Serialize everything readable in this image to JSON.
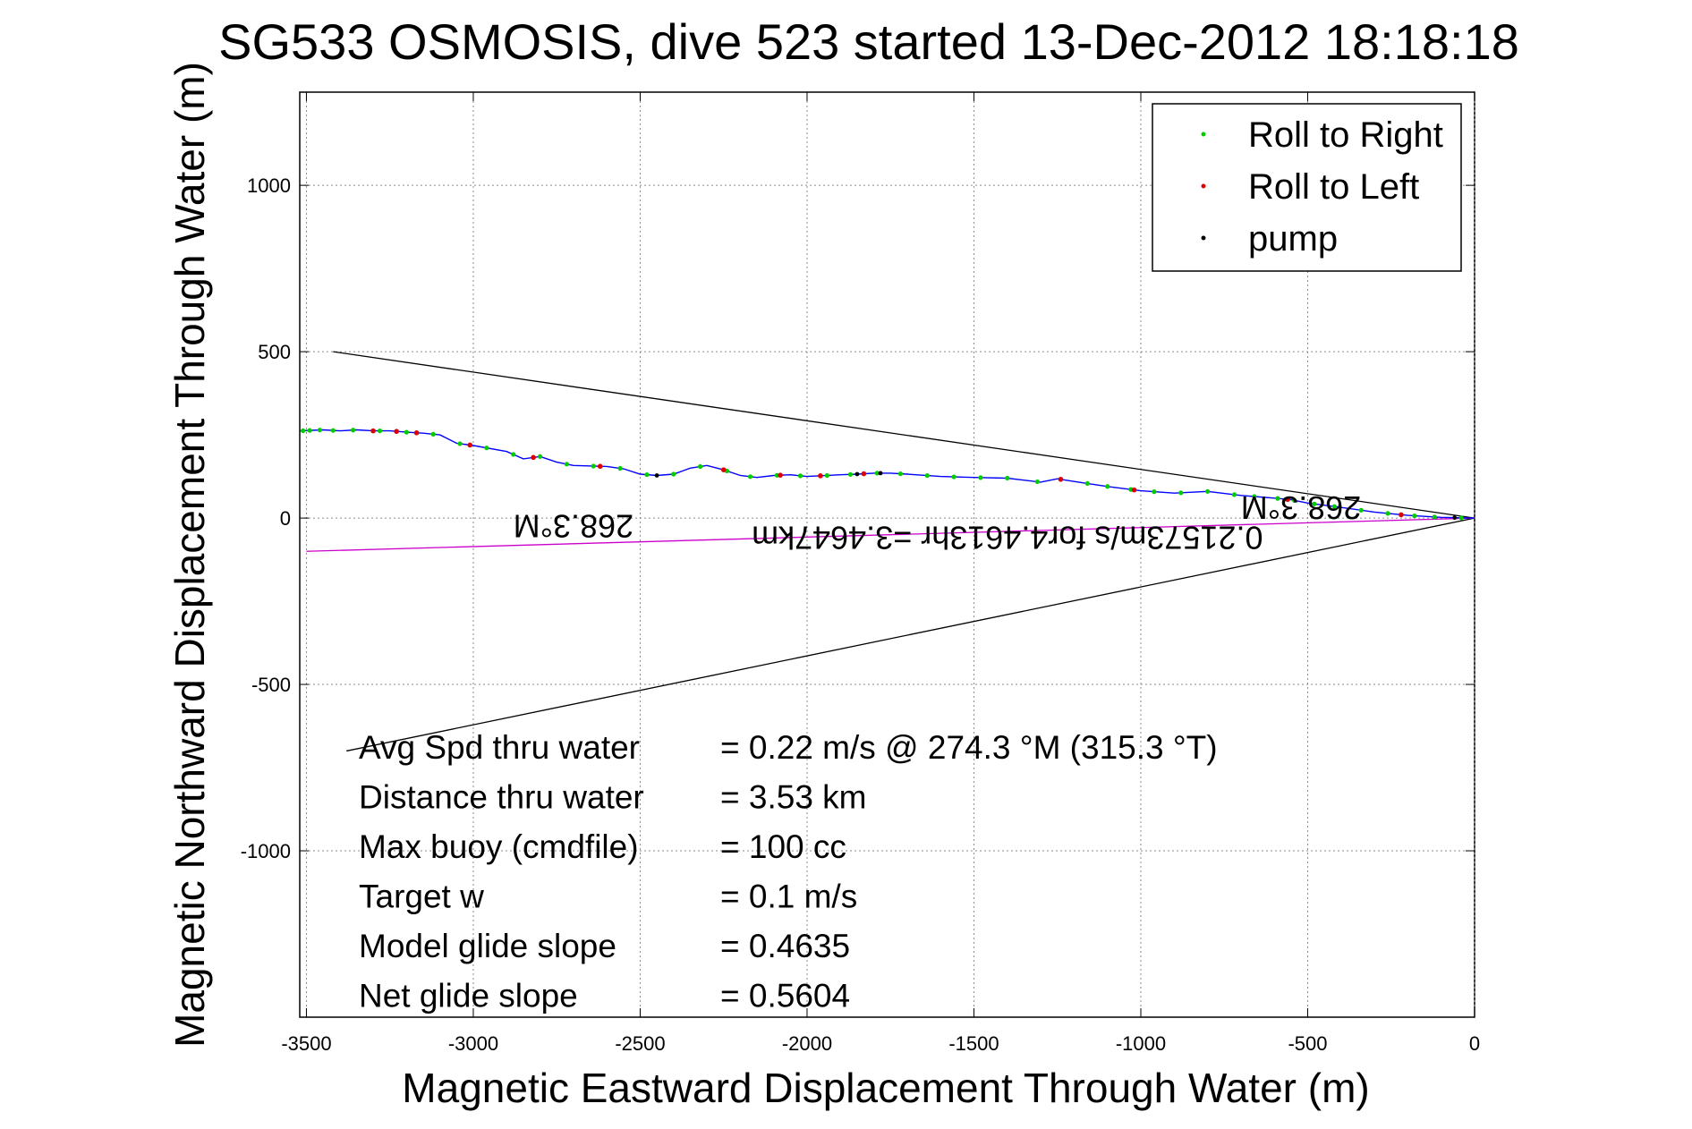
{
  "title": "SG533 OSMOSIS, dive 523 started 13-Dec-2012 18:18:18",
  "chart_data": {
    "type": "line",
    "title": "SG533 OSMOSIS, dive 523 started 13-Dec-2012 18:18:18",
    "xlabel": "Magnetic Eastward Displacement Through Water (m)",
    "ylabel": "Magnetic Northward Displacement Through Water (m)",
    "xlim": [
      -3520,
      0
    ],
    "ylim": [
      -1500,
      1280
    ],
    "xticks": [
      -3500,
      -3000,
      -2500,
      -2000,
      -1500,
      -1000,
      -500,
      0
    ],
    "yticks": [
      -1000,
      -500,
      0,
      500,
      1000
    ],
    "xtick_labels": [
      "-3500",
      "-3000",
      "-2500",
      "-2000",
      "-1500",
      "-1000",
      "-500",
      "0"
    ],
    "ytick_labels": [
      "-1000",
      "-500",
      "0",
      "500",
      "1000"
    ],
    "grid": true,
    "legend_position": "top-right",
    "legend": [
      {
        "label": "Roll to Right",
        "color": "#00cc00"
      },
      {
        "label": "Roll to Left",
        "color": "#dd0000"
      },
      {
        "label": "pump",
        "color": "#000000"
      }
    ],
    "track": {
      "name": "track",
      "color": "#0000ff",
      "x": [
        0,
        -100,
        -200,
        -300,
        -400,
        -500,
        -550,
        -600,
        -700,
        -800,
        -900,
        -1000,
        -1100,
        -1200,
        -1250,
        -1300,
        -1400,
        -1500,
        -1600,
        -1700,
        -1750,
        -1800,
        -1850,
        -1900,
        -2000,
        -2050,
        -2100,
        -2150,
        -2200,
        -2250,
        -2300,
        -2350,
        -2400,
        -2450,
        -2500,
        -2550,
        -2600,
        -2700,
        -2750,
        -2800,
        -2850,
        -2900,
        -3000,
        -3050,
        -3100,
        -3150,
        -3200,
        -3250,
        -3300,
        -3350,
        -3400,
        -3450,
        -3520
      ],
      "y": [
        0,
        2,
        8,
        18,
        32,
        45,
        55,
        60,
        68,
        80,
        75,
        82,
        95,
        110,
        118,
        108,
        120,
        122,
        125,
        132,
        135,
        135,
        132,
        130,
        125,
        130,
        128,
        122,
        128,
        145,
        158,
        150,
        132,
        128,
        132,
        148,
        155,
        158,
        168,
        185,
        178,
        200,
        218,
        225,
        250,
        255,
        258,
        262,
        262,
        265,
        262,
        265,
        262
      ]
    },
    "roll_right_x": [
      -40,
      -120,
      -180,
      -260,
      -340,
      -420,
      -480,
      -540,
      -590,
      -660,
      -720,
      -800,
      -880,
      -960,
      -1030,
      -1100,
      -1160,
      -1240,
      -1310,
      -1400,
      -1480,
      -1560,
      -1640,
      -1720,
      -1790,
      -1870,
      -1940,
      -2020,
      -2090,
      -2170,
      -2240,
      -2320,
      -2400,
      -2480,
      -2560,
      -2640,
      -2720,
      -2800,
      -2880,
      -2960,
      -3040,
      -3120,
      -3200,
      -3280,
      -3360,
      -3420,
      -3460,
      -3490,
      -3510
    ],
    "roll_left_x": [
      -220,
      -560,
      -1020,
      -1240,
      -1830,
      -1960,
      -2080,
      -2250,
      -2620,
      -2820,
      -3010,
      -3170,
      -3230,
      -3300
    ],
    "pump_x": [
      -60,
      -1780,
      -1850,
      -2450
    ],
    "lines": [
      {
        "name": "upper bound",
        "color": "#000000",
        "x": [
          0,
          -3420
        ],
        "y": [
          0,
          500
        ]
      },
      {
        "name": "lower bound",
        "color": "#000000",
        "x": [
          0,
          -3380
        ],
        "y": [
          0,
          -700
        ]
      },
      {
        "name": "depth-average current",
        "color": "#cc00cc",
        "x": [
          0,
          -3500
        ],
        "y": [
          0,
          -100
        ]
      }
    ],
    "annotations": [
      {
        "text": "268.3°M",
        "x": -2700,
        "y": 10,
        "rotation": 180
      },
      {
        "text": "268.3°M",
        "x": -520,
        "y": 65,
        "rotation": 180
      },
      {
        "text": "0.21573m/s for4.4613hr =3.4647km",
        "x": -1400,
        "y": -25,
        "rotation": 180
      }
    ],
    "stats": [
      {
        "label": "Avg Spd thru water",
        "value": "=  0.22 m/s @ 274.3 °M (315.3 °T)"
      },
      {
        "label": "Distance thru water",
        "value": "=  3.53 km"
      },
      {
        "label": "Max buoy (cmdfile)",
        "value": "= 100 cc"
      },
      {
        "label": "Target w",
        "value": "= 0.1 m/s"
      },
      {
        "label": "Model glide slope",
        "value": "= 0.4635"
      },
      {
        "label": "Net glide slope",
        "value": "= 0.5604"
      }
    ]
  }
}
